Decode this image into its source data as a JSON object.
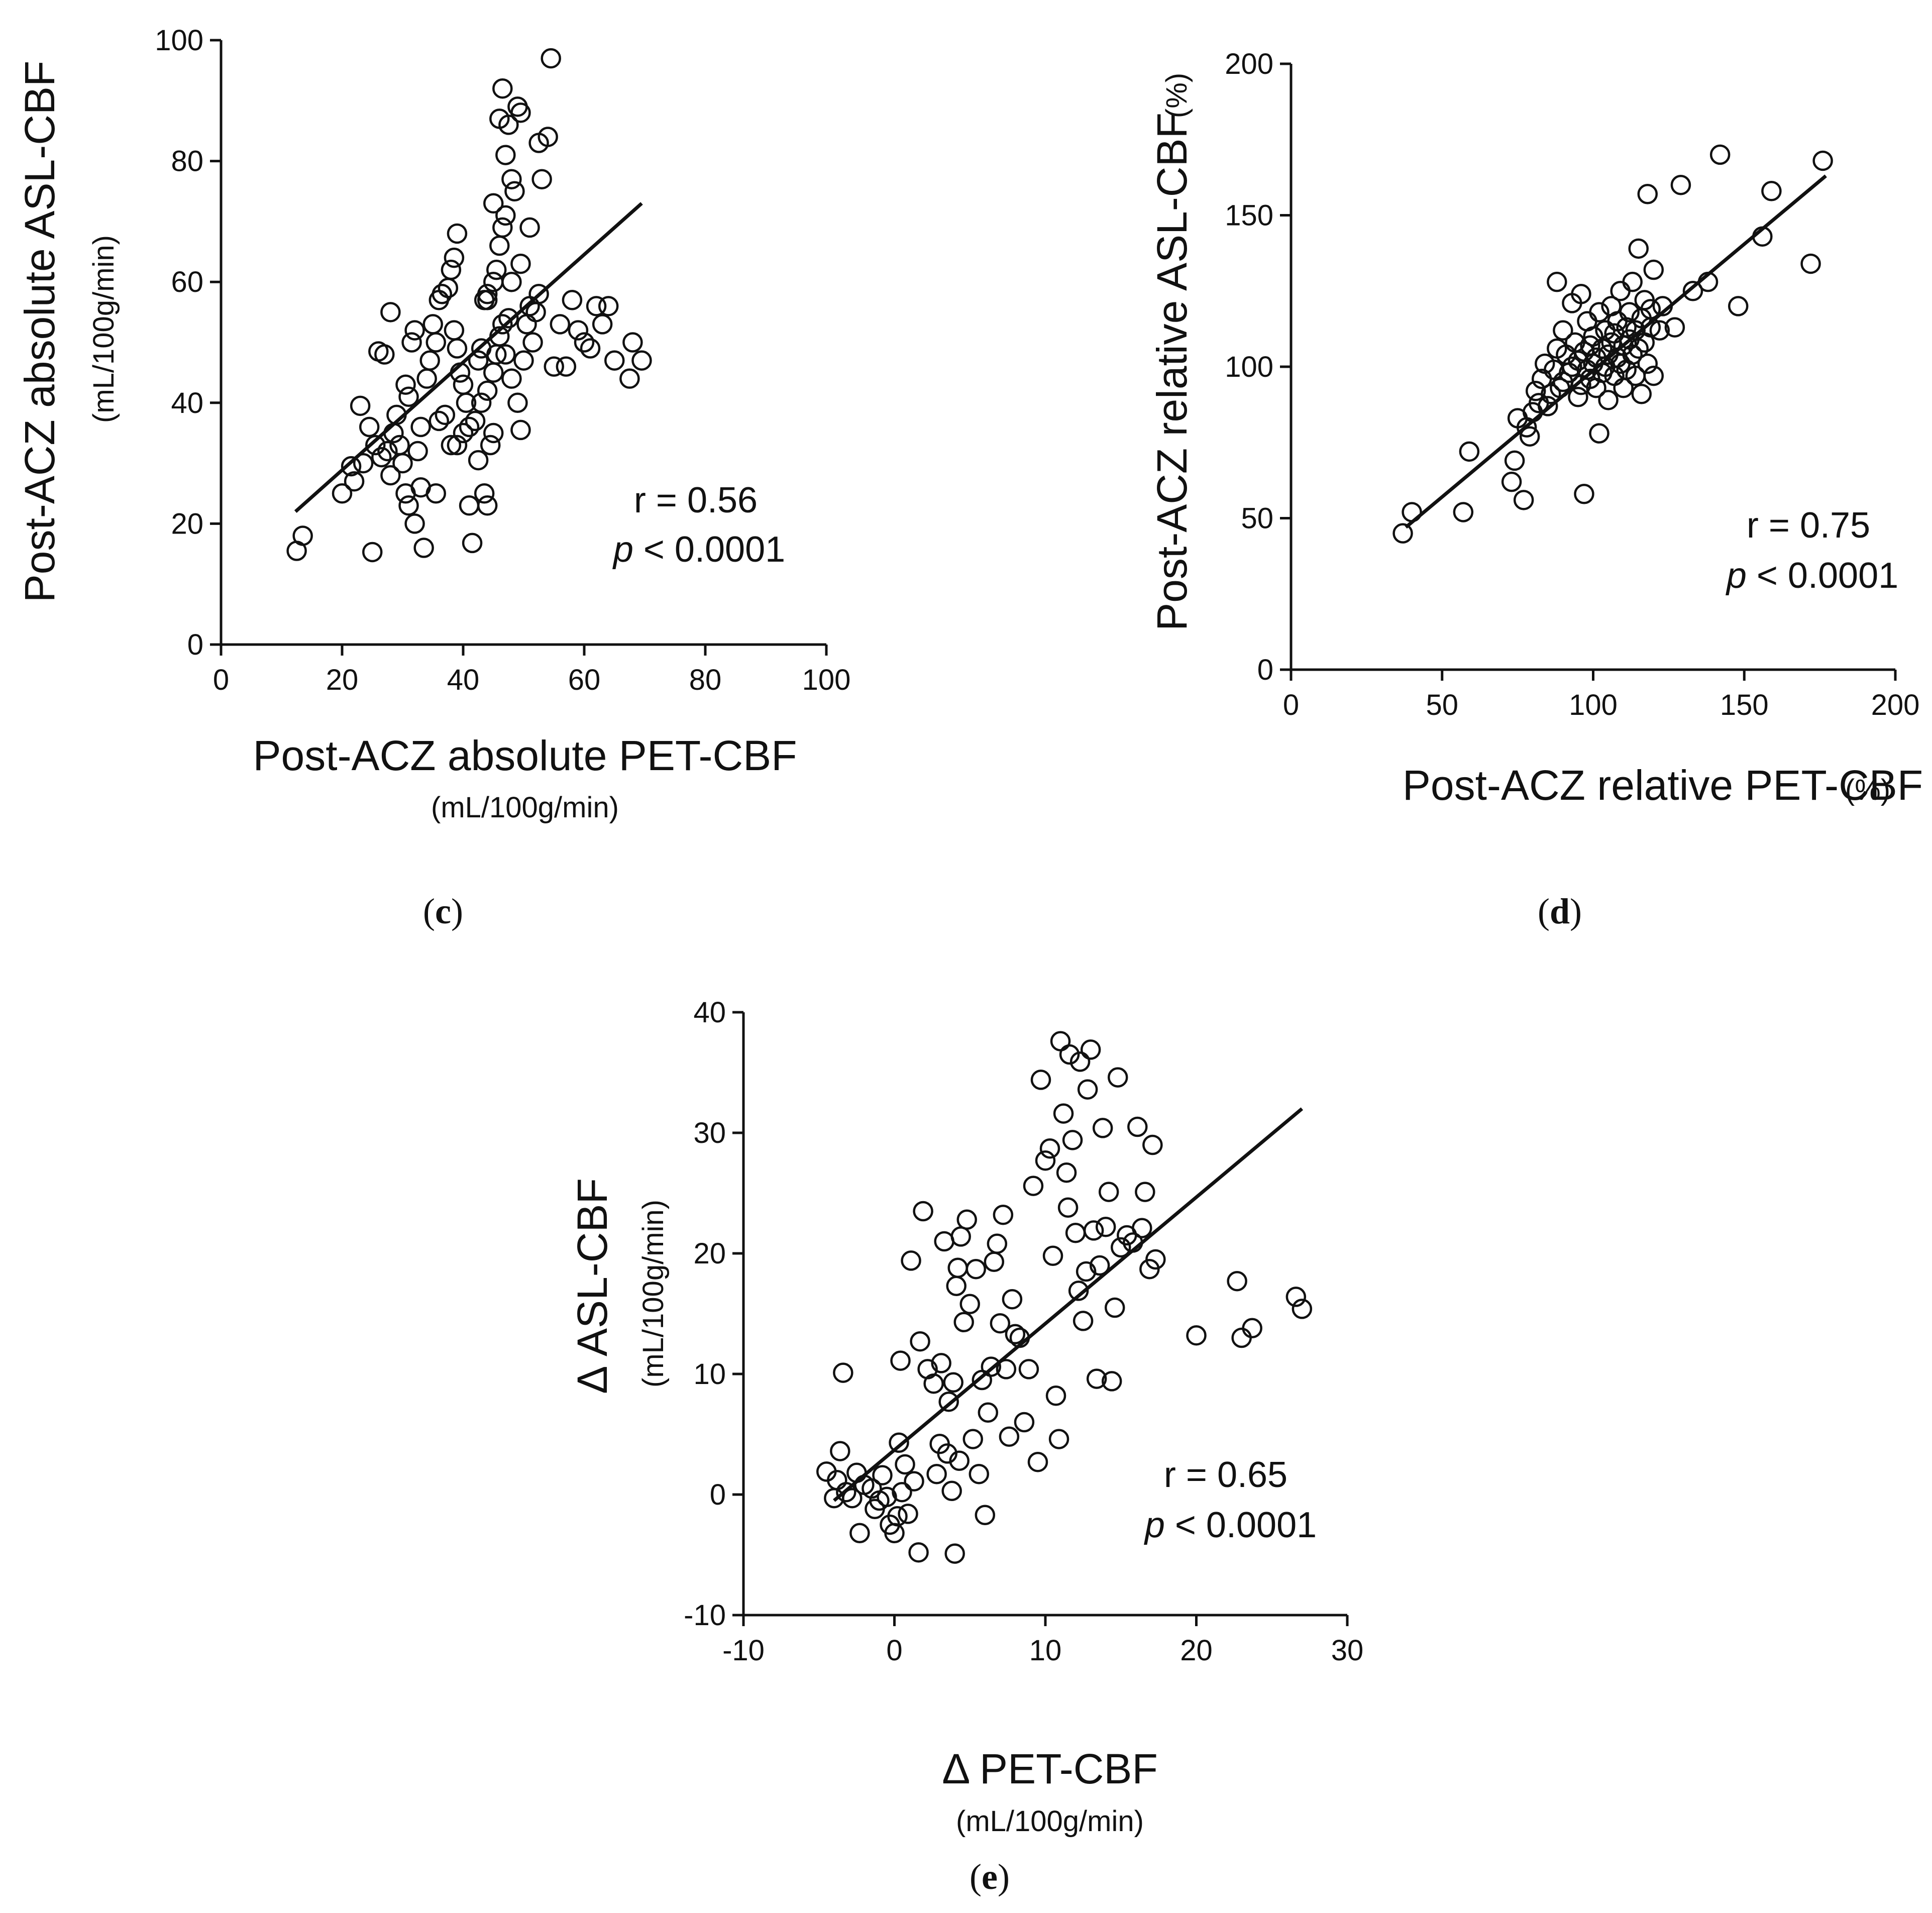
{
  "chart_data": [
    {
      "id": "c",
      "type": "scatter",
      "panel_label": "c",
      "xlabel": "Post-ACZ absolute PET-CBF",
      "xunit": "(mL/100g/min)",
      "ylabel": "Post-ACZ absolute ASL-CBF",
      "yunit": "(mL/100g/min)",
      "xlim": [
        0,
        100
      ],
      "ylim": [
        0,
        100
      ],
      "xticks": [
        0,
        20,
        40,
        60,
        80,
        100
      ],
      "yticks": [
        0,
        20,
        40,
        60,
        80,
        100
      ],
      "stat_r": "r = 0.56",
      "stat_p_italic": "p",
      "stat_p_rest": " < 0.0001",
      "fit": [
        [
          12.3,
          22
        ],
        [
          69.5,
          73
        ]
      ],
      "points": [
        [
          12.5,
          15.5
        ],
        [
          13.5,
          18
        ],
        [
          20,
          25
        ],
        [
          22,
          27
        ],
        [
          21.5,
          29.5
        ],
        [
          23.5,
          30
        ],
        [
          23,
          39.5
        ],
        [
          25,
          15.3
        ],
        [
          24.5,
          36
        ],
        [
          26,
          48.5
        ],
        [
          27,
          48
        ],
        [
          28,
          55
        ],
        [
          25.5,
          33
        ],
        [
          26.5,
          31
        ],
        [
          27.5,
          32
        ],
        [
          28,
          28
        ],
        [
          28.5,
          35
        ],
        [
          29,
          38
        ],
        [
          29.5,
          33
        ],
        [
          30,
          30
        ],
        [
          30.5,
          43
        ],
        [
          31,
          41
        ],
        [
          31.5,
          50
        ],
        [
          32,
          52
        ],
        [
          30.5,
          25
        ],
        [
          31,
          23
        ],
        [
          32,
          20
        ],
        [
          33,
          26
        ],
        [
          33.5,
          16
        ],
        [
          32.5,
          32
        ],
        [
          33,
          36
        ],
        [
          34,
          44
        ],
        [
          34.5,
          47
        ],
        [
          35,
          53
        ],
        [
          35.5,
          50
        ],
        [
          36,
          57
        ],
        [
          36.5,
          58
        ],
        [
          35.5,
          25
        ],
        [
          36,
          37
        ],
        [
          37,
          38
        ],
        [
          37.5,
          59
        ],
        [
          38,
          62
        ],
        [
          38.5,
          64
        ],
        [
          39,
          68
        ],
        [
          38.5,
          52
        ],
        [
          39,
          49
        ],
        [
          39.5,
          45
        ],
        [
          40,
          43
        ],
        [
          40.5,
          40
        ],
        [
          38,
          33
        ],
        [
          39,
          33
        ],
        [
          40,
          35
        ],
        [
          41,
          36
        ],
        [
          41,
          23
        ],
        [
          41.5,
          16.8
        ],
        [
          42,
          37
        ],
        [
          42.5,
          47
        ],
        [
          43,
          49
        ],
        [
          43.5,
          57
        ],
        [
          44,
          57
        ],
        [
          42.5,
          30.5
        ],
        [
          43.5,
          25
        ],
        [
          44,
          23
        ],
        [
          44.5,
          33
        ],
        [
          45,
          35
        ],
        [
          43,
          40
        ],
        [
          44,
          42
        ],
        [
          45,
          45
        ],
        [
          45.5,
          48
        ],
        [
          46,
          51
        ],
        [
          46.5,
          53
        ],
        [
          44,
          58
        ],
        [
          45,
          60
        ],
        [
          45.5,
          62
        ],
        [
          46,
          66
        ],
        [
          46.5,
          69
        ],
        [
          47,
          71
        ],
        [
          45,
          73
        ],
        [
          47,
          81
        ],
        [
          47.5,
          86
        ],
        [
          46,
          87
        ],
        [
          46.5,
          92
        ],
        [
          48,
          77
        ],
        [
          49,
          89
        ],
        [
          49.5,
          88
        ],
        [
          48.5,
          75
        ],
        [
          49.5,
          63
        ],
        [
          48,
          60
        ],
        [
          47.5,
          54
        ],
        [
          47,
          48
        ],
        [
          48,
          44
        ],
        [
          49,
          40
        ],
        [
          49.5,
          35.5
        ],
        [
          50,
          47
        ],
        [
          50.5,
          53
        ],
        [
          51,
          56
        ],
        [
          51.5,
          50
        ],
        [
          52,
          55
        ],
        [
          52.5,
          58
        ],
        [
          51,
          69
        ],
        [
          52.5,
          83
        ],
        [
          53,
          77
        ],
        [
          54,
          84
        ],
        [
          54.5,
          97
        ],
        [
          55,
          46
        ],
        [
          56,
          53
        ],
        [
          57,
          46
        ],
        [
          58,
          57
        ],
        [
          59,
          52
        ],
        [
          60,
          50
        ],
        [
          61,
          49
        ],
        [
          62,
          56
        ],
        [
          63,
          53
        ],
        [
          64,
          56
        ],
        [
          65,
          47
        ],
        [
          68,
          50
        ],
        [
          67.5,
          44
        ],
        [
          69.5,
          47
        ]
      ]
    },
    {
      "id": "d",
      "type": "scatter",
      "panel_label": "d",
      "xlabel": "Post-ACZ relative PET-CBF",
      "xunit": "(%)",
      "ylabel": "Post-ACZ relative ASL-CBF",
      "yunit": "(%)",
      "xlim": [
        0,
        200
      ],
      "ylim": [
        0,
        200
      ],
      "xticks": [
        0,
        50,
        100,
        150,
        200
      ],
      "yticks": [
        0,
        50,
        100,
        150,
        200
      ],
      "stat_r": "r = 0.75",
      "stat_p_italic": "p",
      "stat_p_rest": " < 0.0001",
      "fit": [
        [
          38,
          47
        ],
        [
          177,
          163
        ]
      ],
      "points": [
        [
          37,
          45
        ],
        [
          40,
          52
        ],
        [
          57,
          52
        ],
        [
          59,
          72
        ],
        [
          73,
          62
        ],
        [
          74,
          69
        ],
        [
          75,
          83
        ],
        [
          77,
          56
        ],
        [
          78,
          80
        ],
        [
          79,
          77
        ],
        [
          80,
          85
        ],
        [
          81,
          92
        ],
        [
          82,
          88
        ],
        [
          83,
          96
        ],
        [
          84,
          101
        ],
        [
          85,
          87
        ],
        [
          86,
          91
        ],
        [
          87,
          99
        ],
        [
          88,
          106
        ],
        [
          88,
          128
        ],
        [
          89,
          93
        ],
        [
          90,
          95
        ],
        [
          90,
          112
        ],
        [
          91,
          104
        ],
        [
          92,
          98
        ],
        [
          93,
          100
        ],
        [
          93,
          121
        ],
        [
          94,
          108
        ],
        [
          95,
          90
        ],
        [
          95,
          102
        ],
        [
          96,
          124
        ],
        [
          96,
          94
        ],
        [
          97,
          105
        ],
        [
          97,
          58
        ],
        [
          98,
          99
        ],
        [
          98,
          115
        ],
        [
          99,
          107
        ],
        [
          99,
          96
        ],
        [
          100,
          101
        ],
        [
          100,
          110
        ],
        [
          101,
          93
        ],
        [
          101,
          103
        ],
        [
          102,
          118
        ],
        [
          102,
          78
        ],
        [
          103,
          98
        ],
        [
          103,
          106
        ],
        [
          104,
          112
        ],
        [
          104,
          100
        ],
        [
          105,
          89
        ],
        [
          105,
          104
        ],
        [
          106,
          108
        ],
        [
          106,
          120
        ],
        [
          107,
          97
        ],
        [
          107,
          111
        ],
        [
          108,
          103
        ],
        [
          108,
          115
        ],
        [
          109,
          101
        ],
        [
          109,
          125
        ],
        [
          110,
          107
        ],
        [
          110,
          93
        ],
        [
          111,
          113
        ],
        [
          111,
          99
        ],
        [
          112,
          118
        ],
        [
          112,
          109
        ],
        [
          113,
          104
        ],
        [
          113,
          128
        ],
        [
          114,
          97
        ],
        [
          114,
          112
        ],
        [
          115,
          139
        ],
        [
          115,
          106
        ],
        [
          116,
          116
        ],
        [
          116,
          91
        ],
        [
          117,
          108
        ],
        [
          117,
          122
        ],
        [
          118,
          157
        ],
        [
          118,
          101
        ],
        [
          119,
          113
        ],
        [
          119,
          119
        ],
        [
          120,
          132
        ],
        [
          120,
          97
        ],
        [
          122,
          112
        ],
        [
          123,
          120
        ],
        [
          127,
          113
        ],
        [
          129,
          160
        ],
        [
          133,
          125
        ],
        [
          138,
          128
        ],
        [
          142,
          170
        ],
        [
          148,
          120
        ],
        [
          156,
          143
        ],
        [
          159,
          158
        ],
        [
          172,
          134
        ],
        [
          176,
          168
        ]
      ]
    },
    {
      "id": "e",
      "type": "scatter",
      "panel_label": "e",
      "xlabel": "Δ PET-CBF",
      "xunit": "(mL/100g/min)",
      "ylabel": "Δ ASL-CBF",
      "yunit": "(mL/100g/min)",
      "xlim": [
        -10,
        30
      ],
      "ylim": [
        -10,
        40
      ],
      "xticks": [
        -10,
        0,
        10,
        20,
        30
      ],
      "yticks": [
        -10,
        0,
        10,
        20,
        30,
        40
      ],
      "stat_r": "r = 0.65",
      "stat_p_italic": "p",
      "stat_p_rest": " < 0.0001",
      "fit": [
        [
          -4,
          -0.5
        ],
        [
          27,
          32
        ]
      ],
      "points": [
        [
          -4.5,
          1.9
        ],
        [
          -4,
          -0.3
        ],
        [
          -3.8,
          1.2
        ],
        [
          -3.6,
          3.6
        ],
        [
          -3.4,
          10.1
        ],
        [
          -3.2,
          0.2
        ],
        [
          -2.8,
          -0.3
        ],
        [
          -2.5,
          1.8
        ],
        [
          -2.3,
          -3.2
        ],
        [
          -2,
          0.8
        ],
        [
          -1.5,
          0.5
        ],
        [
          -1.3,
          -1.2
        ],
        [
          -1,
          -0.5
        ],
        [
          -0.8,
          1.6
        ],
        [
          -0.5,
          -0.2
        ],
        [
          -0.3,
          -2.5
        ],
        [
          0,
          -3.2
        ],
        [
          0.2,
          -1.8
        ],
        [
          0.3,
          4.3
        ],
        [
          0.4,
          11.1
        ],
        [
          0.5,
          0.2
        ],
        [
          0.7,
          2.5
        ],
        [
          0.9,
          -1.6
        ],
        [
          1.1,
          19.4
        ],
        [
          1.3,
          1.1
        ],
        [
          1.6,
          -4.8
        ],
        [
          1.7,
          12.7
        ],
        [
          1.9,
          23.5
        ],
        [
          2.2,
          10.4
        ],
        [
          2.6,
          9.2
        ],
        [
          2.8,
          1.7
        ],
        [
          3,
          4.2
        ],
        [
          3.1,
          10.9
        ],
        [
          3.3,
          21
        ],
        [
          3.5,
          3.4
        ],
        [
          3.6,
          7.7
        ],
        [
          3.8,
          0.3
        ],
        [
          3.9,
          9.3
        ],
        [
          4,
          -4.9
        ],
        [
          4.1,
          17.3
        ],
        [
          4.2,
          18.8
        ],
        [
          4.3,
          2.8
        ],
        [
          4.4,
          21.4
        ],
        [
          4.6,
          14.3
        ],
        [
          4.8,
          22.8
        ],
        [
          5,
          15.8
        ],
        [
          5.2,
          4.6
        ],
        [
          5.4,
          18.7
        ],
        [
          5.6,
          1.7
        ],
        [
          5.8,
          9.5
        ],
        [
          6,
          -1.7
        ],
        [
          6.2,
          6.8
        ],
        [
          6.4,
          10.6
        ],
        [
          6.6,
          19.3
        ],
        [
          6.8,
          20.8
        ],
        [
          7,
          14.2
        ],
        [
          7.2,
          23.2
        ],
        [
          7.4,
          10.4
        ],
        [
          7.6,
          4.8
        ],
        [
          7.8,
          16.2
        ],
        [
          8,
          13.3
        ],
        [
          8.3,
          13
        ],
        [
          8.6,
          6
        ],
        [
          8.9,
          10.4
        ],
        [
          9.2,
          25.6
        ],
        [
          9.5,
          2.7
        ],
        [
          9.7,
          34.4
        ],
        [
          10,
          27.7
        ],
        [
          10.3,
          28.7
        ],
        [
          10.5,
          19.8
        ],
        [
          10.7,
          8.2
        ],
        [
          10.9,
          4.6
        ],
        [
          11,
          37.6
        ],
        [
          11.2,
          31.6
        ],
        [
          11.4,
          26.7
        ],
        [
          11.5,
          23.8
        ],
        [
          11.6,
          36.5
        ],
        [
          11.8,
          29.4
        ],
        [
          12,
          21.7
        ],
        [
          12.2,
          16.9
        ],
        [
          12.3,
          35.9
        ],
        [
          12.5,
          14.4
        ],
        [
          12.7,
          18.5
        ],
        [
          12.8,
          33.6
        ],
        [
          13,
          36.9
        ],
        [
          13.2,
          21.9
        ],
        [
          13.4,
          9.6
        ],
        [
          13.6,
          19
        ],
        [
          13.8,
          30.4
        ],
        [
          14,
          22.2
        ],
        [
          14.2,
          25.1
        ],
        [
          14.4,
          9.4
        ],
        [
          14.6,
          15.5
        ],
        [
          14.8,
          34.6
        ],
        [
          15,
          20.5
        ],
        [
          15.4,
          21.5
        ],
        [
          15.8,
          20.9
        ],
        [
          16.1,
          30.5
        ],
        [
          16.4,
          22.1
        ],
        [
          16.6,
          25.1
        ],
        [
          16.9,
          18.7
        ],
        [
          17.1,
          29
        ],
        [
          17.3,
          19.5
        ],
        [
          20,
          13.2
        ],
        [
          22.7,
          17.7
        ],
        [
          23,
          13
        ],
        [
          23.7,
          13.8
        ],
        [
          26.6,
          16.4
        ],
        [
          27,
          15.4
        ]
      ]
    }
  ]
}
